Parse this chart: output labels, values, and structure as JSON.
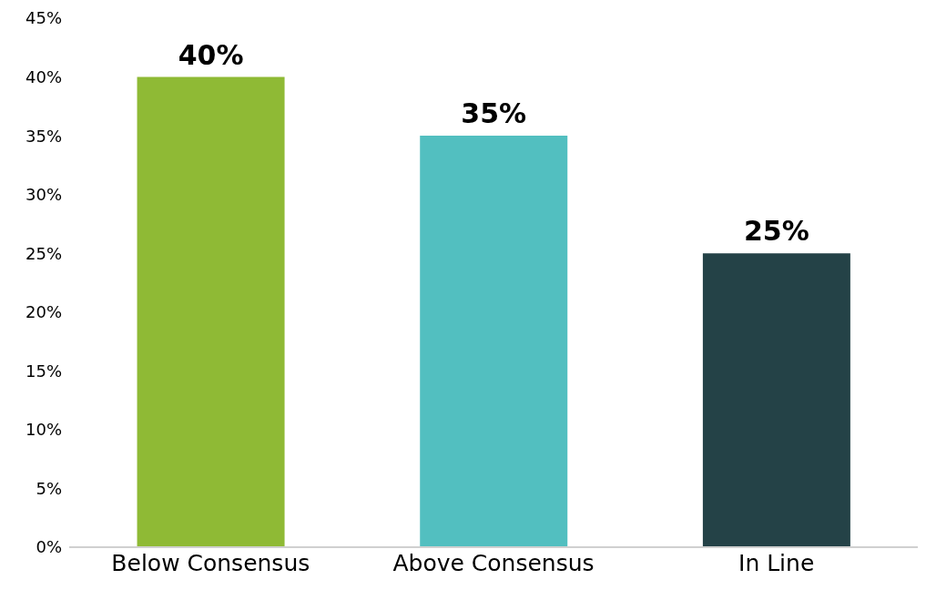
{
  "chart_data": {
    "type": "bar",
    "categories": [
      "Below Consensus",
      "Above Consensus",
      "In Line"
    ],
    "values": [
      40,
      35,
      25
    ],
    "colors": [
      "#8fba35",
      "#52bfc0",
      "#244247"
    ],
    "value_labels": [
      "40%",
      "35%",
      "25%"
    ],
    "ylim": [
      0,
      45
    ],
    "yticks": [
      {
        "value": 0,
        "label": "0%"
      },
      {
        "value": 5,
        "label": "5%"
      },
      {
        "value": 10,
        "label": "10%"
      },
      {
        "value": 15,
        "label": "15%"
      },
      {
        "value": 20,
        "label": "20%"
      },
      {
        "value": 25,
        "label": "25%"
      },
      {
        "value": 30,
        "label": "30%"
      },
      {
        "value": 35,
        "label": "35%"
      },
      {
        "value": 40,
        "label": "40%"
      },
      {
        "value": 45,
        "label": "45%"
      }
    ],
    "grid": false,
    "legend": false
  }
}
